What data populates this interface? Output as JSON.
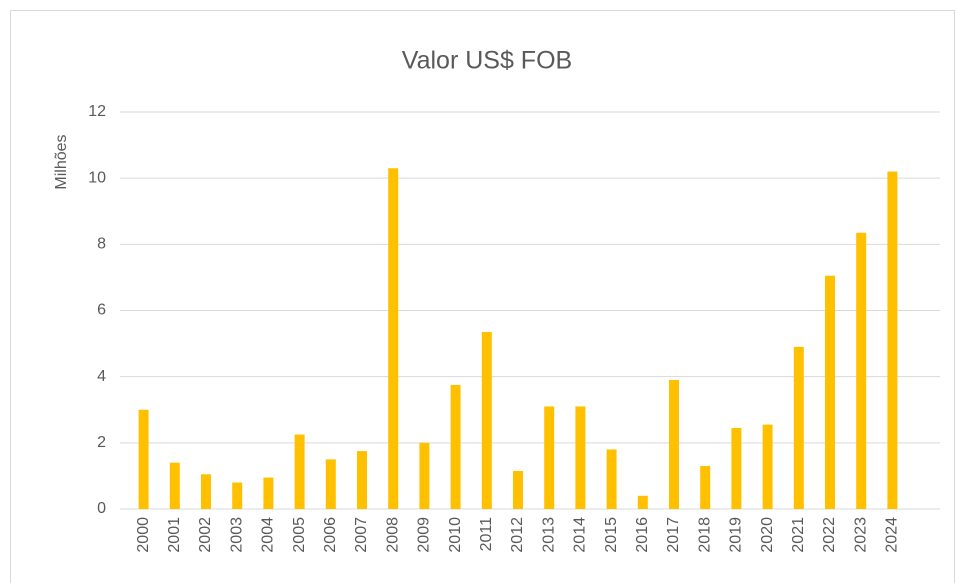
{
  "chart_data": {
    "type": "bar",
    "title": "Valor US$ FOB",
    "y_label": "Milhões",
    "categories": [
      "2000",
      "2001",
      "2002",
      "2003",
      "2004",
      "2005",
      "2006",
      "2007",
      "2008",
      "2009",
      "2010",
      "2011",
      "2012",
      "2013",
      "2014",
      "2015",
      "2016",
      "2017",
      "2018",
      "2019",
      "2020",
      "2021",
      "2022",
      "2023",
      "2024"
    ],
    "values": [
      3.0,
      1.4,
      1.05,
      0.8,
      0.95,
      2.25,
      1.5,
      1.75,
      10.3,
      2.0,
      3.75,
      5.35,
      1.15,
      3.1,
      3.1,
      1.8,
      0.4,
      3.9,
      1.3,
      2.45,
      2.55,
      4.9,
      7.05,
      8.35,
      10.2
    ],
    "color": "#ffc000",
    "ylim": [
      0,
      12
    ],
    "yticks": [
      0,
      2,
      4,
      6,
      8,
      10,
      12
    ],
    "grid": true
  }
}
